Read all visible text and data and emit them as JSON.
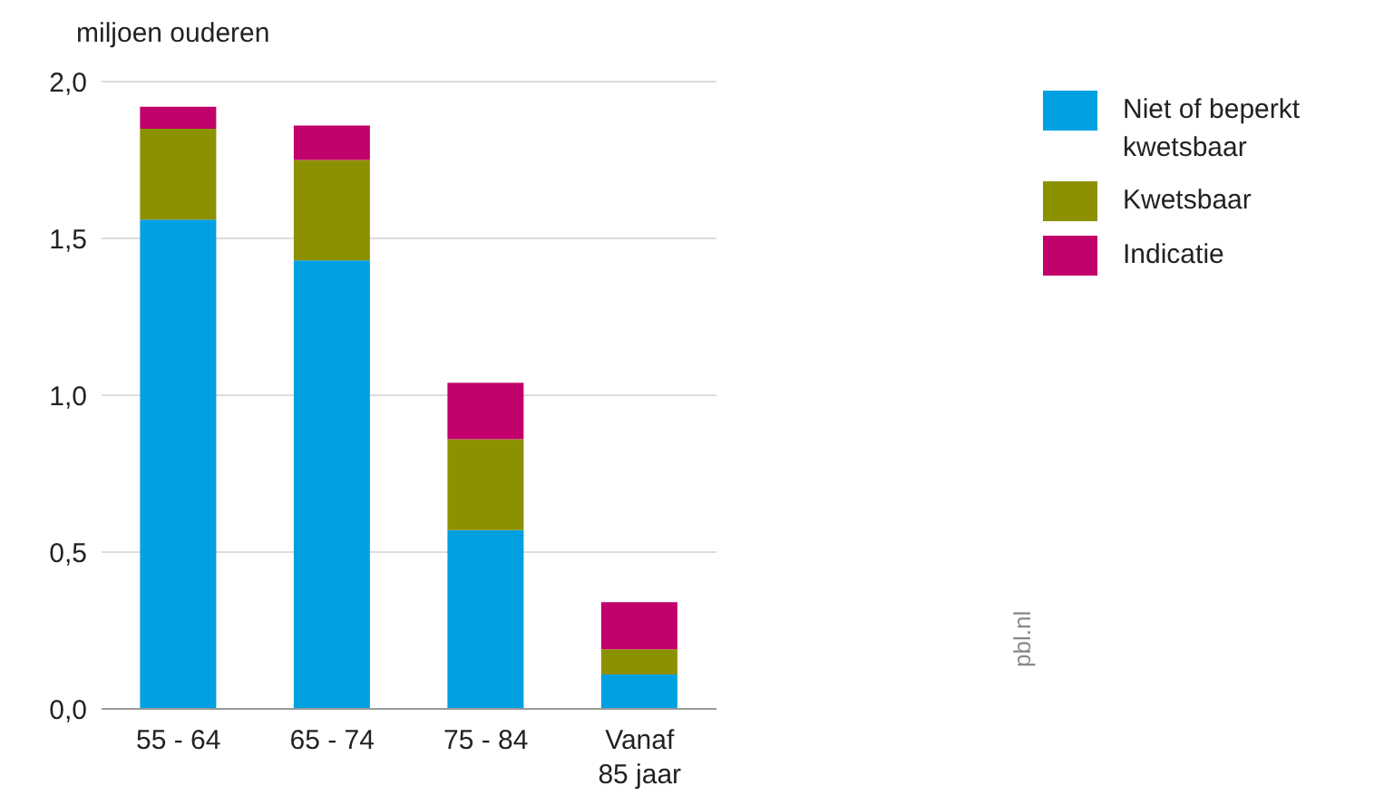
{
  "chart_data": {
    "type": "bar",
    "stacked": true,
    "ylabel": "miljoen ouderen",
    "categories": [
      "55 - 64",
      "65 - 74",
      "75 - 84",
      "Vanaf 85 jaar"
    ],
    "series": [
      {
        "name": "Niet of beperkt kwetsbaar",
        "color": "#00a0e1",
        "values": [
          1.56,
          1.43,
          0.57,
          0.11
        ]
      },
      {
        "name": "Kwetsbaar",
        "color": "#8c9100",
        "values": [
          0.29,
          0.32,
          0.29,
          0.08
        ]
      },
      {
        "name": "Indicatie",
        "color": "#c2006b",
        "values": [
          0.07,
          0.11,
          0.18,
          0.15
        ]
      }
    ],
    "ylim": [
      0,
      2
    ],
    "yticks": [
      {
        "value": 0,
        "label": "0,0"
      },
      {
        "value": 0.5,
        "label": "0,5"
      },
      {
        "value": 1,
        "label": "1,0"
      },
      {
        "value": 1.5,
        "label": "1,5"
      },
      {
        "value": 2,
        "label": "2,0"
      }
    ],
    "grid": "y",
    "legend": "top right",
    "annotations": [
      "pbl.nl"
    ]
  }
}
